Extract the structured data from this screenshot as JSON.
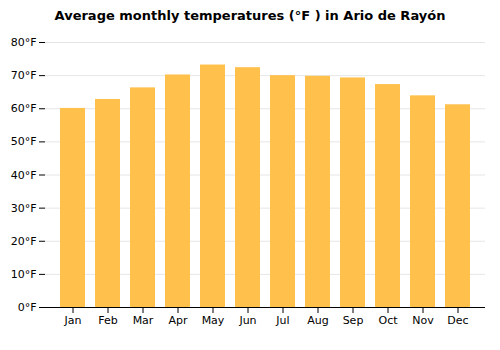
{
  "chart_data": {
    "type": "bar",
    "title": "Average monthly temperatures (°F ) in Ario de Rayón",
    "categories": [
      "Jan",
      "Feb",
      "Mar",
      "Apr",
      "May",
      "Jun",
      "Jul",
      "Aug",
      "Sep",
      "Oct",
      "Nov",
      "Dec"
    ],
    "values": [
      60.1,
      62.8,
      66.3,
      70.2,
      73.2,
      72.4,
      70.0,
      69.8,
      69.3,
      67.3,
      63.9,
      61.2
    ],
    "color": "#FFC04C",
    "ylim": [
      0,
      80
    ],
    "yticks": [
      {
        "value": 0,
        "label": "0°F"
      },
      {
        "value": 10,
        "label": "10°F"
      },
      {
        "value": 20,
        "label": "20°F"
      },
      {
        "value": 30,
        "label": "30°F"
      },
      {
        "value": 40,
        "label": "40°F"
      },
      {
        "value": 50,
        "label": "50°F"
      },
      {
        "value": 60,
        "label": "60°F"
      },
      {
        "value": 70,
        "label": "70°F"
      },
      {
        "value": 80,
        "label": "80°F"
      }
    ],
    "grid": true
  }
}
